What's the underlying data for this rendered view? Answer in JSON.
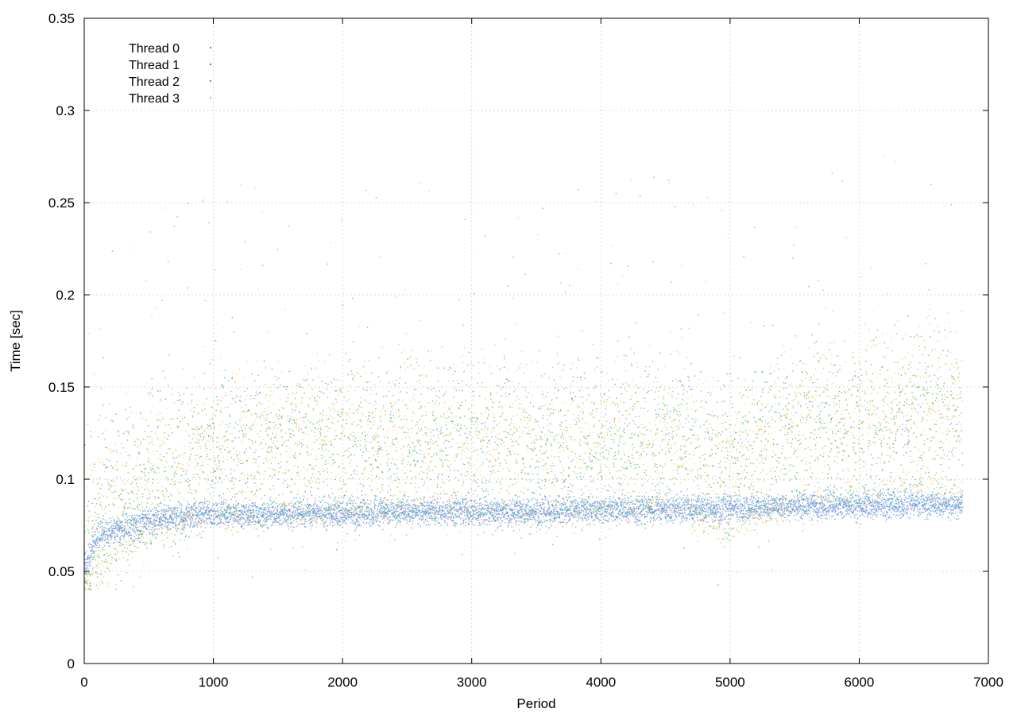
{
  "chart_data": {
    "type": "scatter",
    "title": "",
    "xlabel": "Period",
    "ylabel": "Time [sec]",
    "xlim": [
      0,
      7000
    ],
    "ylim": [
      0,
      0.35
    ],
    "x_ticks": [
      0,
      1000,
      2000,
      3000,
      4000,
      5000,
      6000,
      7000
    ],
    "x_tick_labels": [
      "0",
      "1000",
      "2000",
      "3000",
      "4000",
      "5000",
      "6000",
      "7000"
    ],
    "y_ticks": [
      0,
      0.05,
      0.1,
      0.15,
      0.2,
      0.25,
      0.3,
      0.35
    ],
    "y_tick_labels": [
      "0",
      "0.05",
      "0.1",
      "0.15",
      "0.2",
      "0.25",
      "0.3",
      "0.35"
    ],
    "grid": true,
    "legend_position": "top-left",
    "series": [
      {
        "name": "Thread 0",
        "color": "#8a7fe0",
        "profile": "baseline",
        "x": [
          0,
          100,
          200,
          500,
          800,
          1000,
          1500,
          2000,
          2500,
          3000,
          3500,
          4000,
          4500,
          5000,
          5500,
          6000,
          6500,
          6800
        ],
        "y": [
          0.05,
          0.068,
          0.07,
          0.077,
          0.08,
          0.081,
          0.081,
          0.081,
          0.082,
          0.082,
          0.082,
          0.083,
          0.083,
          0.084,
          0.085,
          0.085,
          0.086,
          0.085
        ]
      },
      {
        "name": "Thread 1",
        "color": "#3a9bd8",
        "profile": "baseline",
        "x": [
          0,
          100,
          200,
          500,
          800,
          1000,
          1500,
          2000,
          2500,
          3000,
          3500,
          4000,
          4500,
          5000,
          5500,
          6000,
          6500,
          6800
        ],
        "y": [
          0.05,
          0.07,
          0.072,
          0.078,
          0.081,
          0.082,
          0.082,
          0.082,
          0.083,
          0.083,
          0.083,
          0.084,
          0.084,
          0.085,
          0.086,
          0.086,
          0.087,
          0.086
        ]
      },
      {
        "name": "Thread 2",
        "color": "#4caf6a",
        "profile": "elevated",
        "x": [
          0,
          100,
          200,
          500,
          800,
          1000,
          1500,
          2000,
          2500,
          3000,
          3500,
          4000,
          4500,
          5000,
          5500,
          6000,
          6500,
          6800
        ],
        "y": [
          0.05,
          0.075,
          0.085,
          0.1,
          0.11,
          0.115,
          0.118,
          0.12,
          0.122,
          0.12,
          0.118,
          0.12,
          0.125,
          0.11,
          0.13,
          0.13,
          0.14,
          0.135
        ]
      },
      {
        "name": "Thread 3",
        "color": "#f2c14e",
        "profile": "elevated",
        "x": [
          0,
          100,
          200,
          500,
          800,
          1000,
          1500,
          2000,
          2500,
          3000,
          3500,
          4000,
          4500,
          5000,
          5500,
          6000,
          6500,
          6800
        ],
        "y": [
          0.05,
          0.078,
          0.088,
          0.105,
          0.115,
          0.12,
          0.12,
          0.122,
          0.125,
          0.123,
          0.12,
          0.122,
          0.128,
          0.105,
          0.13,
          0.135,
          0.145,
          0.14
        ]
      }
    ]
  }
}
